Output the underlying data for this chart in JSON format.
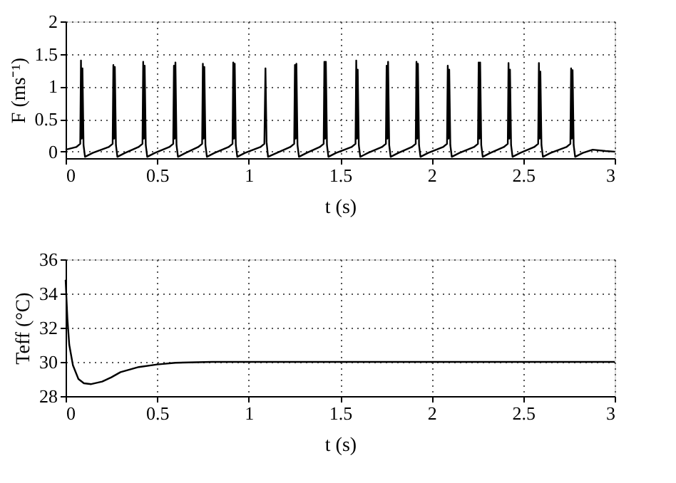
{
  "chart_data": [
    {
      "type": "line",
      "xlabel": "t (s)",
      "ylabel": "F (ms⁻¹)",
      "xlim": [
        0,
        3
      ],
      "xticks": [
        0,
        0.5,
        1,
        1.5,
        2,
        2.5,
        3
      ],
      "ylim": [
        -0.1,
        2
      ],
      "yticks": [
        0,
        0.5,
        1,
        1.5,
        2
      ],
      "grid": true,
      "line_style": "solid",
      "marker": "none",
      "series": [
        {
          "color": "#000000",
          "x": [
            0,
            0.058,
            0.08,
            0.084,
            0.088,
            0.092,
            0.098,
            0.106,
            0.148,
            0.235,
            0.257,
            0.261,
            0.265,
            0.269,
            0.275,
            0.283,
            0.325,
            0.398,
            0.42,
            0.424,
            0.428,
            0.432,
            0.438,
            0.446,
            0.488,
            0.566,
            0.588,
            0.592,
            0.596,
            0.6,
            0.606,
            0.614,
            0.656,
            0.724,
            0.746,
            0.75,
            0.754,
            0.758,
            0.764,
            0.772,
            0.814,
            0.89,
            0.912,
            0.916,
            0.92,
            0.924,
            0.93,
            0.938,
            0.98,
            1.064,
            1.086,
            1.092,
            1.098,
            1.106,
            1.154,
            1.227,
            1.249,
            1.253,
            1.257,
            1.261,
            1.267,
            1.275,
            1.317,
            1.388,
            1.41,
            1.414,
            1.418,
            1.422,
            1.428,
            1.436,
            1.478,
            1.562,
            1.584,
            1.588,
            1.592,
            1.596,
            1.602,
            1.61,
            1.652,
            1.728,
            1.75,
            1.754,
            1.758,
            1.762,
            1.768,
            1.776,
            1.818,
            1.891,
            1.913,
            1.917,
            1.921,
            1.925,
            1.931,
            1.939,
            1.981,
            2.062,
            2.084,
            2.088,
            2.092,
            2.096,
            2.102,
            2.11,
            2.152,
            2.231,
            2.253,
            2.257,
            2.261,
            2.265,
            2.271,
            2.279,
            2.321,
            2.394,
            2.416,
            2.42,
            2.424,
            2.428,
            2.434,
            2.442,
            2.484,
            2.56,
            2.582,
            2.586,
            2.59,
            2.594,
            2.6,
            2.608,
            2.65,
            2.736,
            2.758,
            2.762,
            2.766,
            2.77,
            2.776,
            2.784,
            2.826,
            2.88,
            2.95,
            3.0
          ],
          "values": [
            0.03,
            0.07,
            0.12,
            1.4,
            0.2,
            1.28,
            0.1,
            -0.08,
            -0.02,
            0.07,
            0.12,
            1.33,
            0.2,
            1.3,
            0.1,
            -0.08,
            -0.02,
            0.07,
            0.12,
            1.38,
            0.2,
            1.32,
            0.1,
            -0.08,
            -0.02,
            0.07,
            0.12,
            1.32,
            0.2,
            1.37,
            0.1,
            -0.08,
            -0.02,
            0.07,
            0.12,
            1.35,
            0.2,
            1.3,
            0.1,
            -0.08,
            -0.02,
            0.07,
            0.12,
            1.37,
            0.2,
            1.35,
            0.1,
            -0.08,
            -0.02,
            0.07,
            0.12,
            1.28,
            0.15,
            -0.08,
            -0.02,
            0.07,
            0.12,
            1.33,
            0.2,
            1.35,
            0.1,
            -0.08,
            -0.02,
            0.07,
            0.12,
            1.38,
            0.2,
            1.38,
            0.1,
            -0.08,
            -0.02,
            0.07,
            0.12,
            1.4,
            0.2,
            1.26,
            0.1,
            -0.08,
            -0.02,
            0.07,
            0.12,
            1.32,
            0.2,
            1.38,
            0.1,
            -0.08,
            -0.02,
            0.07,
            0.12,
            1.38,
            0.2,
            1.35,
            0.1,
            -0.08,
            -0.02,
            0.07,
            0.12,
            1.32,
            0.2,
            1.26,
            0.1,
            -0.08,
            -0.02,
            0.07,
            0.12,
            1.37,
            0.2,
            1.37,
            0.1,
            -0.08,
            -0.02,
            0.07,
            0.12,
            1.36,
            0.2,
            1.26,
            0.1,
            -0.08,
            -0.02,
            0.07,
            0.12,
            1.36,
            0.2,
            1.23,
            0.1,
            -0.08,
            -0.02,
            0.07,
            0.12,
            1.28,
            0.2,
            1.25,
            0.1,
            -0.08,
            -0.02,
            0.03,
            0.01,
            0.0
          ]
        }
      ]
    },
    {
      "type": "line",
      "xlabel": "t (s)",
      "ylabel": "Teff (°C)",
      "xlim": [
        0,
        3
      ],
      "xticks": [
        0,
        0.5,
        1,
        1.5,
        2,
        2.5,
        3
      ],
      "ylim": [
        28,
        36
      ],
      "yticks": [
        28,
        30,
        32,
        34,
        36
      ],
      "grid": true,
      "line_style": "solid",
      "marker": "none",
      "series": [
        {
          "color": "#000000",
          "x": [
            0,
            0.01,
            0.02,
            0.04,
            0.07,
            0.1,
            0.14,
            0.2,
            0.25,
            0.3,
            0.4,
            0.5,
            0.6,
            0.8,
            1,
            3
          ],
          "values": [
            34.8,
            32.5,
            31,
            29.8,
            29,
            28.75,
            28.7,
            28.85,
            29.1,
            29.4,
            29.7,
            29.85,
            29.95,
            30,
            30,
            30
          ]
        }
      ]
    }
  ]
}
